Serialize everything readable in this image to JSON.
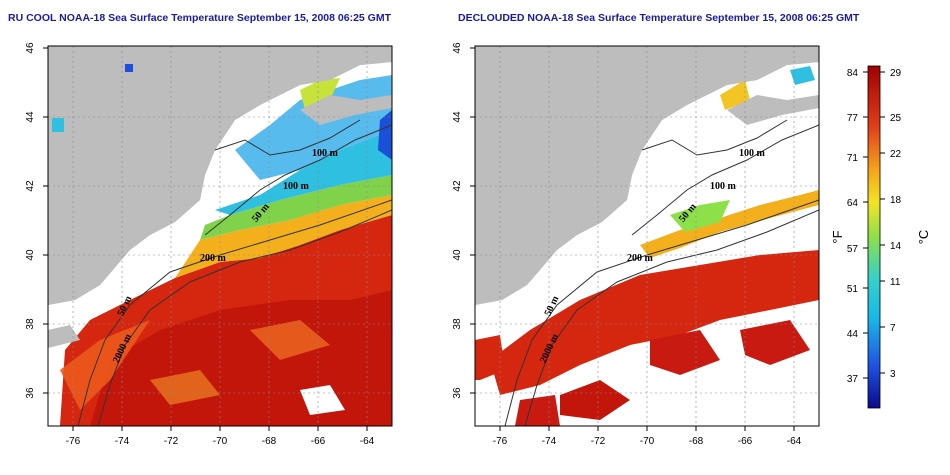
{
  "left_panel": {
    "title": "RU COOL NOAA-18 Sea Surface Temperature September 15, 2008 06:25 GMT"
  },
  "right_panel": {
    "title": "DECLOUDED NOAA-18 Sea Surface Temperature September 15, 2008 06:25 GMT"
  },
  "axes": {
    "lon_ticks": [
      "-76",
      "-74",
      "-72",
      "-70",
      "-68",
      "-66",
      "-64"
    ],
    "lat_ticks": [
      "46",
      "44",
      "42",
      "40",
      "38",
      "36"
    ]
  },
  "contour_labels": [
    "100 m",
    "100 m",
    "50 m",
    "200 m",
    "50 m",
    "2000 m"
  ],
  "colorbar": {
    "fahrenheit_ticks": [
      "84",
      "77",
      "71",
      "64",
      "57",
      "51",
      "44",
      "37"
    ],
    "celsius_ticks": [
      "29",
      "25",
      "22",
      "18",
      "14",
      "11",
      "7",
      "3"
    ],
    "left_unit": "°F",
    "right_unit": "°C"
  },
  "colors": {
    "land": "#bdbdbd",
    "cloud": "#ffffff",
    "title": "#1a1aa6"
  }
}
